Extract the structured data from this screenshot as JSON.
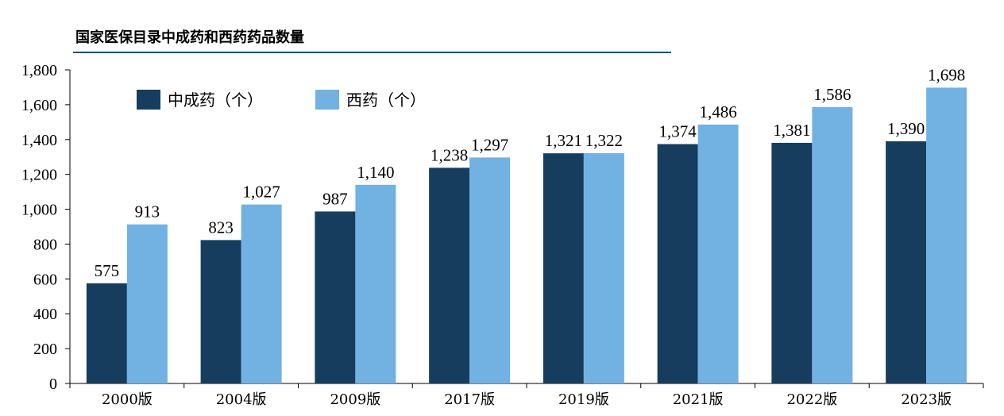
{
  "title": "国家医保目录中成药和西药药品数量",
  "chart_data": {
    "type": "bar",
    "title": "国家医保目录中成药和西药药品数量",
    "categories": [
      "2000版",
      "2004版",
      "2009版",
      "2017版",
      "2019版",
      "2021版",
      "2022版",
      "2023版"
    ],
    "series": [
      {
        "name": "中成药（个）",
        "color": "#163d5e",
        "values": [
          575,
          823,
          987,
          1238,
          1321,
          1374,
          1381,
          1390
        ]
      },
      {
        "name": "西药（个）",
        "color": "#71b2e2",
        "values": [
          913,
          1027,
          1140,
          1297,
          1322,
          1486,
          1586,
          1698
        ]
      }
    ],
    "ylim": [
      0,
      1800
    ],
    "yticks": [
      0,
      200,
      400,
      600,
      800,
      1000,
      1200,
      1400,
      1600,
      1800
    ],
    "xlabel": "",
    "ylabel": "",
    "legend": "top-left",
    "grid": false
  }
}
